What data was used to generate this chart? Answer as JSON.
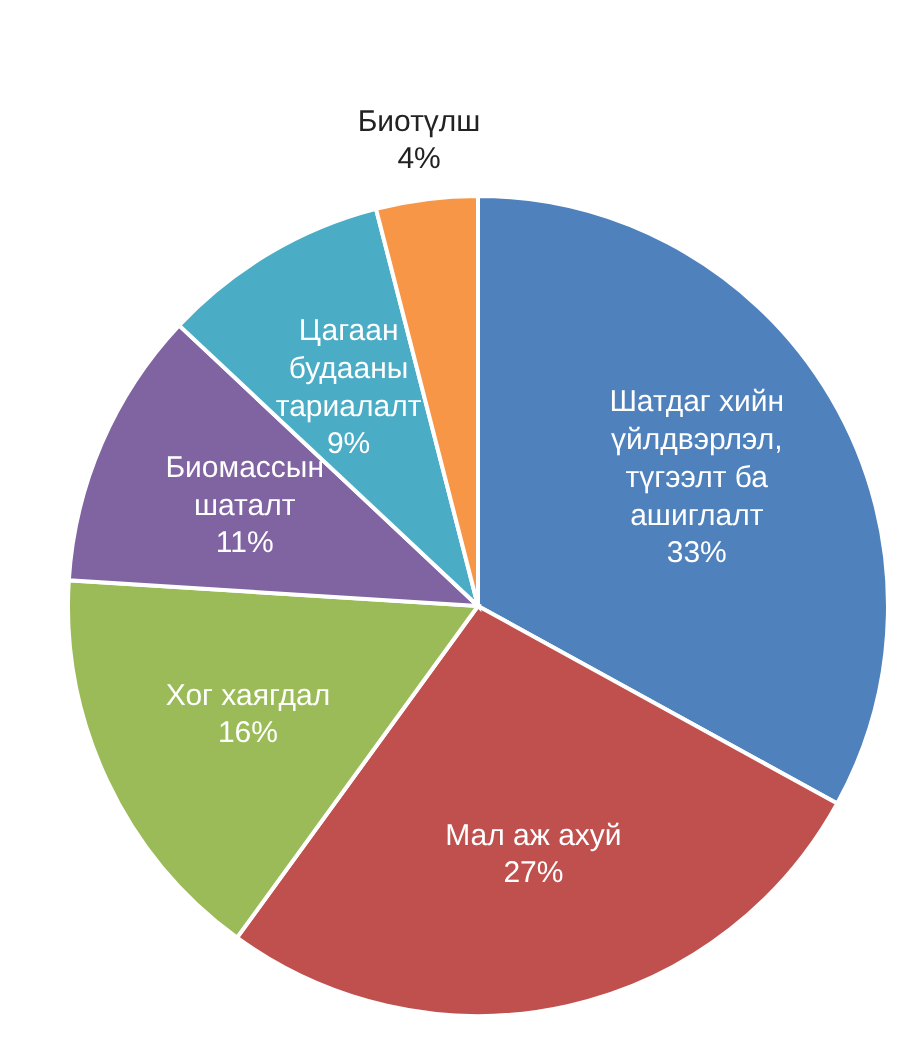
{
  "chart_data": {
    "type": "pie",
    "categories": [
      "Шатдаг хийн үйлдвэрлэл, түгээлт ба ашиглалт",
      "Мал аж ахуй",
      "Хог хаягдал",
      "Биомассын шаталт",
      "Цагаан будааны тариалалт",
      "Биотүлш"
    ],
    "values": [
      33,
      27,
      16,
      11,
      9,
      4
    ],
    "colors": [
      "#4f81bd",
      "#c0504d",
      "#9bbb59",
      "#8064a2",
      "#4bacc6",
      "#f79646"
    ],
    "value_labels": [
      "33%",
      "27%",
      "16%",
      "11%",
      "9%",
      "4%"
    ]
  }
}
